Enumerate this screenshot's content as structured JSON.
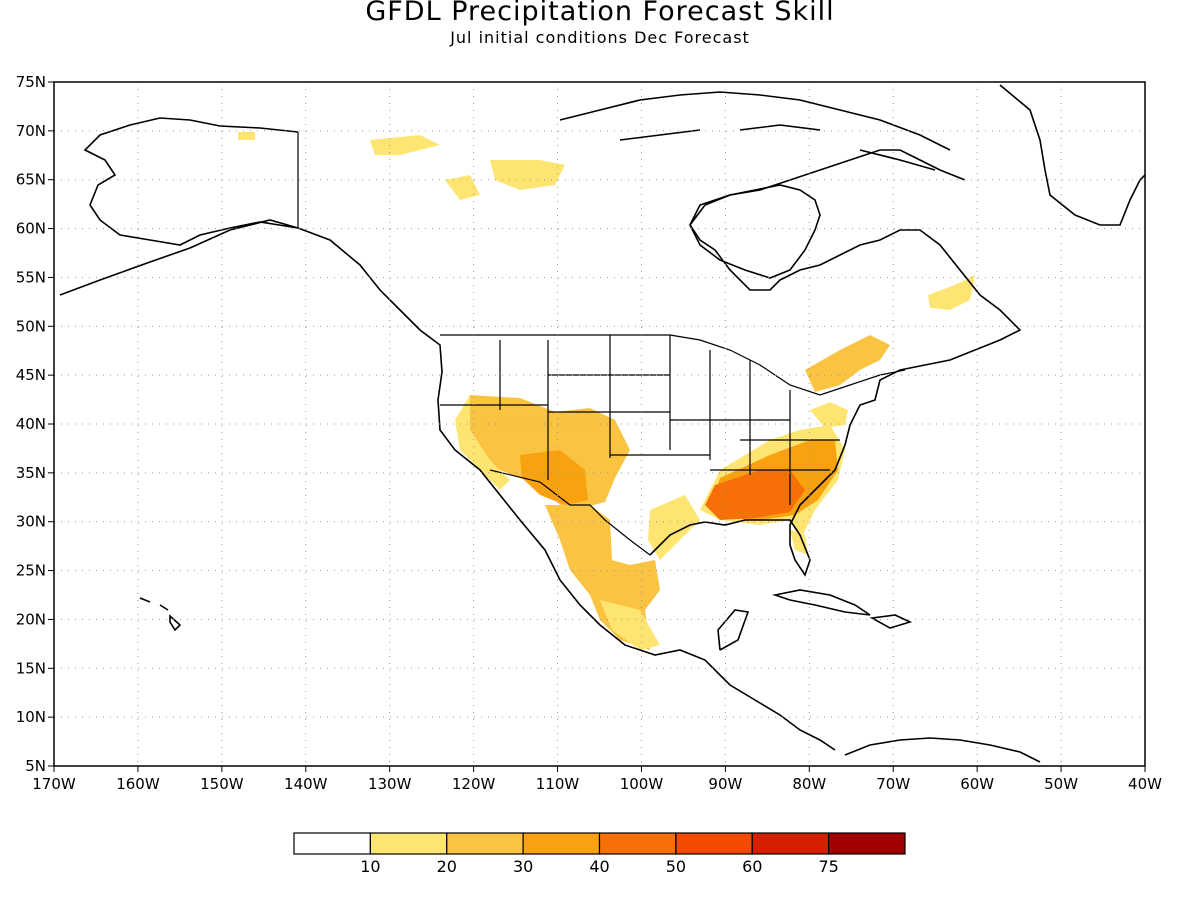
{
  "title": "GFDL Precipitation Forecast Skill",
  "subtitle": "Jul initial conditions  Dec Forecast",
  "axes": {
    "lon_labels": [
      "170W",
      "160W",
      "150W",
      "140W",
      "130W",
      "120W",
      "110W",
      "100W",
      "90W",
      "80W",
      "70W",
      "60W",
      "50W",
      "40W"
    ],
    "lat_labels": [
      "75N",
      "70N",
      "65N",
      "60N",
      "55N",
      "50N",
      "45N",
      "40N",
      "35N",
      "30N",
      "25N",
      "20N",
      "15N",
      "10N",
      "5N"
    ],
    "lon_range": [
      -170,
      -40
    ],
    "lat_range": [
      5,
      75
    ],
    "grid": "dotted"
  },
  "colorbar": {
    "labels": [
      "10",
      "20",
      "30",
      "40",
      "50",
      "60",
      "75"
    ],
    "colors": [
      "#ffffff",
      "#fee572",
      "#fbc342",
      "#f9a20f",
      "#f77007",
      "#f54a02",
      "#d61e00",
      "#a10000"
    ]
  }
}
